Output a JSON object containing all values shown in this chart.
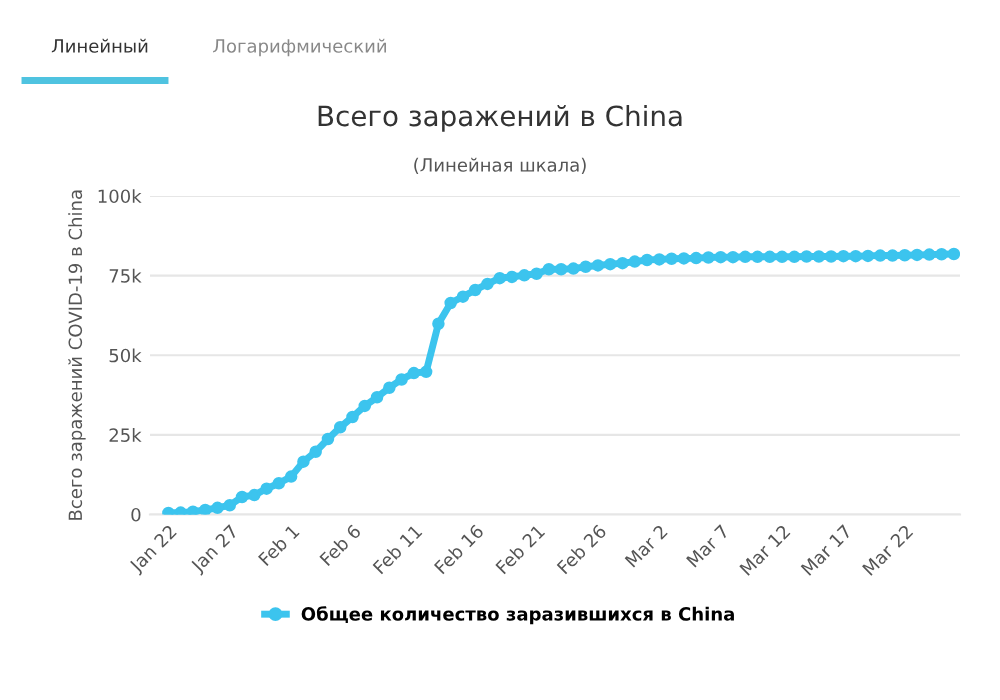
{
  "chart_data": {
    "type": "line",
    "title": "Всего заражений в China",
    "subtitle": "(Линейная шкала)",
    "ylabel": "Всего заражений COVID-19 в China",
    "annotations": [
      "Линейный",
      "Логарифмический"
    ],
    "categories": [
      "Jan 22",
      null,
      null,
      null,
      null,
      "Jan 27",
      null,
      null,
      null,
      null,
      "Feb 1",
      null,
      null,
      null,
      null,
      "Feb 6",
      null,
      null,
      null,
      null,
      "Feb 11",
      null,
      null,
      null,
      null,
      "Feb 16",
      null,
      null,
      null,
      null,
      "Feb 21",
      null,
      null,
      null,
      null,
      "Feb 26",
      null,
      null,
      null,
      null,
      "Mar 2",
      null,
      null,
      null,
      null,
      "Mar 7",
      null,
      null,
      null,
      null,
      "Mar 12",
      null,
      null,
      null,
      null,
      "Mar 17",
      null,
      null,
      null,
      null,
      "Mar 22",
      null,
      null,
      null,
      null
    ],
    "series": [
      {
        "name": "Общее количество заразившихся в China",
        "color": "#3cc4ee",
        "values": [
          500,
          600,
          900,
          1400,
          2100,
          2900,
          5500,
          6100,
          8100,
          9800,
          11900,
          16600,
          19700,
          23700,
          27400,
          30600,
          34100,
          36800,
          39800,
          42400,
          44400,
          44800,
          59900,
          66400,
          68400,
          70500,
          72400,
          74200,
          74600,
          75100,
          75600,
          77000,
          77000,
          77200,
          77800,
          78200,
          78600,
          78900,
          79400,
          79900,
          80100,
          80300,
          80400,
          80500,
          80700,
          80800,
          80800,
          80900,
          80900,
          80900,
          80900,
          80900,
          81000,
          81000,
          81000,
          81100,
          81100,
          81200,
          81300,
          81300,
          81400,
          81500,
          81600,
          81700,
          81800
        ]
      }
    ],
    "ylim": [
      0,
      100000
    ],
    "yticks": [
      {
        "value": 0,
        "label": "0"
      },
      {
        "value": 25000,
        "label": "25k"
      },
      {
        "value": 50000,
        "label": "50k"
      },
      {
        "value": 75000,
        "label": "75k"
      },
      {
        "value": 100000,
        "label": "100k"
      }
    ],
    "grid": "y",
    "legend": "bottom",
    "marker": "circle",
    "line_style": "solid"
  }
}
